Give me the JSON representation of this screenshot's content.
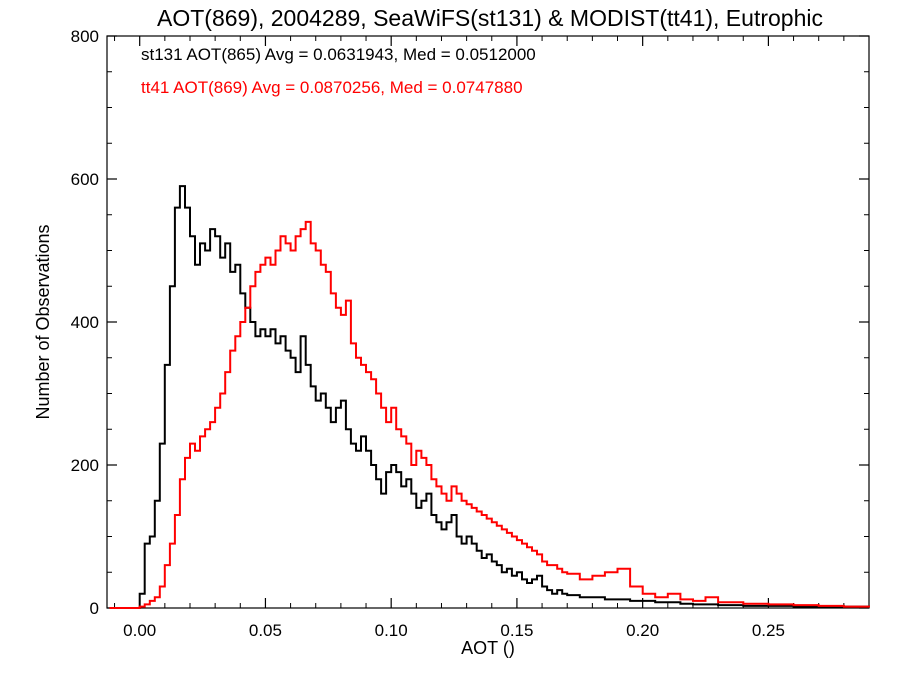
{
  "chart_data": {
    "type": "line",
    "title": "AOT(869), 2004289, SeaWiFS(st131) & MODIST(tt41), Eutrophic",
    "xlabel": "AOT ()",
    "ylabel": "Number of Observations",
    "xlim": [
      -0.013,
      0.29
    ],
    "ylim": [
      0,
      800
    ],
    "x_ticks": [
      0.0,
      0.05,
      0.1,
      0.15,
      0.2,
      0.25
    ],
    "x_tick_labels": [
      "0.00",
      "0.05",
      "0.10",
      "0.15",
      "0.20",
      "0.25"
    ],
    "y_ticks": [
      0,
      200,
      400,
      600,
      800
    ],
    "y_tick_labels": [
      "0",
      "200",
      "400",
      "600",
      "800"
    ],
    "grid": false,
    "annotations": [
      {
        "text": "st131 AOT(865) Avg = 0.0631943, Med = 0.0512000",
        "color": "#000000"
      },
      {
        "text": "tt41 AOT(869) Avg = 0.0870256, Med = 0.0747880",
        "color": "#ff0000"
      }
    ],
    "series": [
      {
        "color": "#000000",
        "step": "histogram",
        "x": [
          -0.012,
          0.0,
          0.002,
          0.004,
          0.006,
          0.008,
          0.01,
          0.012,
          0.014,
          0.016,
          0.018,
          0.02,
          0.022,
          0.024,
          0.026,
          0.028,
          0.03,
          0.032,
          0.034,
          0.036,
          0.038,
          0.04,
          0.042,
          0.044,
          0.046,
          0.048,
          0.05,
          0.052,
          0.054,
          0.056,
          0.058,
          0.06,
          0.062,
          0.064,
          0.066,
          0.068,
          0.07,
          0.072,
          0.074,
          0.076,
          0.078,
          0.08,
          0.082,
          0.084,
          0.086,
          0.088,
          0.09,
          0.092,
          0.094,
          0.096,
          0.098,
          0.1,
          0.102,
          0.104,
          0.106,
          0.108,
          0.11,
          0.112,
          0.114,
          0.116,
          0.118,
          0.12,
          0.122,
          0.124,
          0.126,
          0.128,
          0.13,
          0.132,
          0.134,
          0.136,
          0.138,
          0.14,
          0.142,
          0.144,
          0.146,
          0.148,
          0.15,
          0.152,
          0.154,
          0.156,
          0.158,
          0.16,
          0.162,
          0.164,
          0.166,
          0.168,
          0.17,
          0.175,
          0.18,
          0.185,
          0.19,
          0.195,
          0.2,
          0.205,
          0.21,
          0.215,
          0.22,
          0.225,
          0.23,
          0.24,
          0.25,
          0.26,
          0.27,
          0.28,
          0.29
        ],
        "values": [
          0,
          20,
          90,
          100,
          150,
          230,
          340,
          450,
          560,
          590,
          560,
          520,
          480,
          510,
          500,
          530,
          520,
          490,
          510,
          470,
          480,
          440,
          420,
          400,
          380,
          390,
          380,
          390,
          370,
          380,
          360,
          350,
          330,
          380,
          340,
          310,
          290,
          300,
          280,
          260,
          280,
          290,
          250,
          230,
          220,
          240,
          220,
          200,
          180,
          160,
          190,
          200,
          190,
          170,
          180,
          160,
          140,
          150,
          160,
          130,
          120,
          110,
          120,
          130,
          100,
          90,
          100,
          90,
          80,
          70,
          75,
          65,
          60,
          50,
          55,
          45,
          50,
          40,
          35,
          40,
          45,
          30,
          25,
          20,
          25,
          20,
          18,
          15,
          15,
          12,
          12,
          10,
          10,
          8,
          8,
          6,
          5,
          5,
          4,
          3,
          3,
          2,
          2,
          2,
          1
        ]
      },
      {
        "color": "#ff0000",
        "step": "histogram",
        "x": [
          -0.012,
          0.0,
          0.002,
          0.004,
          0.006,
          0.008,
          0.01,
          0.012,
          0.014,
          0.016,
          0.018,
          0.02,
          0.022,
          0.024,
          0.026,
          0.028,
          0.03,
          0.032,
          0.034,
          0.036,
          0.038,
          0.04,
          0.042,
          0.044,
          0.046,
          0.048,
          0.05,
          0.052,
          0.054,
          0.056,
          0.058,
          0.06,
          0.062,
          0.064,
          0.066,
          0.068,
          0.07,
          0.072,
          0.074,
          0.076,
          0.078,
          0.08,
          0.082,
          0.084,
          0.086,
          0.088,
          0.09,
          0.092,
          0.094,
          0.096,
          0.098,
          0.1,
          0.102,
          0.104,
          0.106,
          0.108,
          0.11,
          0.112,
          0.114,
          0.116,
          0.118,
          0.12,
          0.122,
          0.124,
          0.126,
          0.128,
          0.13,
          0.132,
          0.134,
          0.136,
          0.138,
          0.14,
          0.142,
          0.144,
          0.146,
          0.148,
          0.15,
          0.152,
          0.154,
          0.156,
          0.158,
          0.16,
          0.162,
          0.164,
          0.166,
          0.168,
          0.17,
          0.175,
          0.18,
          0.185,
          0.19,
          0.195,
          0.2,
          0.205,
          0.21,
          0.215,
          0.22,
          0.225,
          0.23,
          0.24,
          0.25,
          0.26,
          0.27,
          0.28,
          0.29
        ],
        "values": [
          0,
          2,
          5,
          10,
          15,
          30,
          60,
          90,
          130,
          180,
          210,
          230,
          220,
          240,
          250,
          260,
          280,
          300,
          330,
          360,
          380,
          400,
          420,
          450,
          470,
          480,
          490,
          480,
          500,
          520,
          510,
          500,
          520,
          530,
          540,
          510,
          500,
          480,
          470,
          440,
          420,
          410,
          430,
          370,
          350,
          340,
          330,
          320,
          300,
          280,
          260,
          280,
          250,
          240,
          230,
          200,
          220,
          210,
          200,
          180,
          170,
          160,
          150,
          170,
          160,
          150,
          145,
          140,
          135,
          130,
          125,
          120,
          115,
          110,
          105,
          100,
          95,
          90,
          85,
          80,
          75,
          65,
          60,
          60,
          55,
          50,
          48,
          40,
          45,
          50,
          55,
          30,
          20,
          15,
          20,
          12,
          10,
          15,
          8,
          6,
          5,
          4,
          3,
          2,
          1
        ]
      }
    ]
  }
}
